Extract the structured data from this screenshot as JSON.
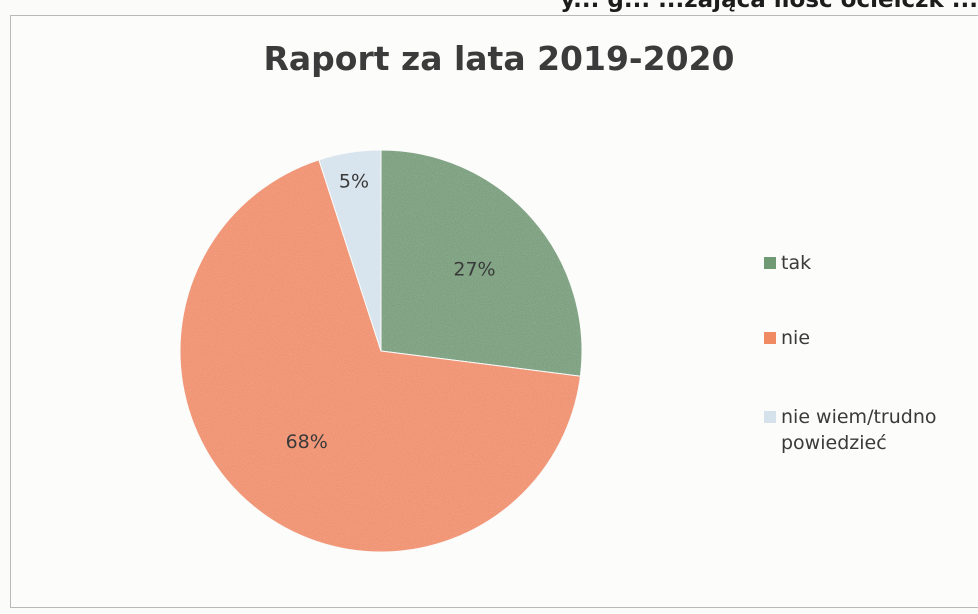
{
  "header_fragment": "y... g...  ...zająca ilość ocielczk ...",
  "chart_data": {
    "type": "pie",
    "title": "Raport za lata 2019-2020",
    "categories": [
      "tak",
      "nie",
      "nie wiem/trudno powiedzieć"
    ],
    "values": [
      27,
      68,
      5
    ],
    "data_labels": [
      "27%",
      "68%",
      "5%"
    ],
    "colors": [
      "#6f9a73",
      "#f08a62",
      "#d5e2ec"
    ],
    "start_angle_deg": 0,
    "direction": "clockwise",
    "legend_position": "right"
  }
}
